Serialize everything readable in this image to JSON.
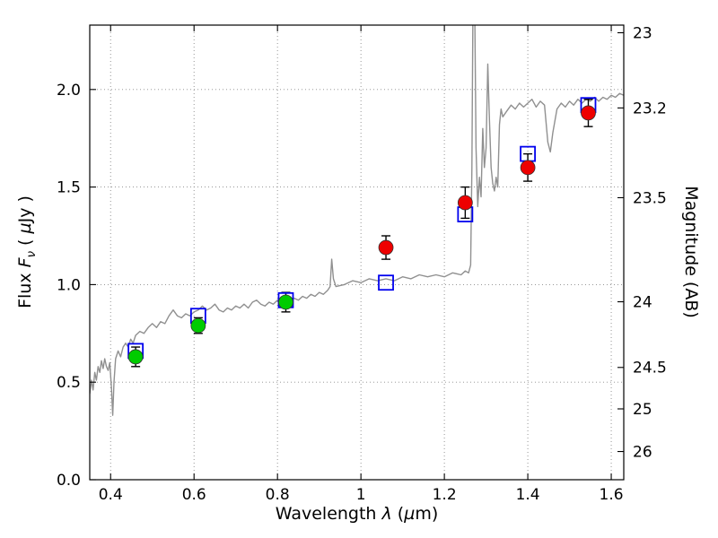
{
  "figure": {
    "background": "#ffffff",
    "frame_color": "#000000",
    "grid_color": "#8a8a8a"
  },
  "labels": {
    "xlabel": {
      "prefix": "Wavelength ",
      "symbol": "λ",
      "mid": " (",
      "symbol2": "µ",
      "end": "m)"
    },
    "ylabel_left": {
      "prefix": "Flux ",
      "symbol": "F",
      "subscript": "ν",
      "mid": " ( ",
      "symbol2": "µ",
      "end": "Jy )"
    },
    "ylabel_right": "Magnitude (AB)"
  },
  "chart_data": {
    "type": "line",
    "title": "",
    "xlabel": "Wavelength λ (µm)",
    "ylabel_left": "Flux Fν ( µJy )",
    "ylabel_right": "Magnitude (AB)",
    "xlim": [
      0.35,
      1.63
    ],
    "ylim": [
      0.0,
      2.33
    ],
    "grid": "dotted",
    "legend": "none",
    "mag_zeropoint": 23.9,
    "x_ticks": [
      0.4,
      0.6,
      0.8,
      1.0,
      1.2,
      1.4,
      1.6
    ],
    "x_tick_labels": [
      "0.4",
      "0.6",
      "0.8",
      "1",
      "1.2",
      "1.4",
      "1.6"
    ],
    "y_ticks_left": [
      0.0,
      0.5,
      1.0,
      1.5,
      2.0
    ],
    "y_tick_labels_left": [
      "0.0",
      "0.5",
      "1.0",
      "1.5",
      "2.0"
    ],
    "y_ticks_right_mags": [
      23,
      23.2,
      23.5,
      24,
      24.5,
      25,
      26
    ],
    "y_tick_labels_right": [
      "23",
      "23.2",
      "23.5",
      "24",
      "24.5",
      "25",
      "26"
    ],
    "series": [
      {
        "name": "model-spectrum",
        "type": "line",
        "color": "#909090",
        "width": 1.4,
        "points": [
          [
            0.35,
            0.44
          ],
          [
            0.354,
            0.51
          ],
          [
            0.358,
            0.46
          ],
          [
            0.362,
            0.55
          ],
          [
            0.366,
            0.51
          ],
          [
            0.37,
            0.58
          ],
          [
            0.374,
            0.55
          ],
          [
            0.378,
            0.61
          ],
          [
            0.382,
            0.57
          ],
          [
            0.386,
            0.62
          ],
          [
            0.39,
            0.58
          ],
          [
            0.394,
            0.56
          ],
          [
            0.398,
            0.6
          ],
          [
            0.402,
            0.47
          ],
          [
            0.405,
            0.33
          ],
          [
            0.408,
            0.5
          ],
          [
            0.412,
            0.62
          ],
          [
            0.418,
            0.66
          ],
          [
            0.424,
            0.63
          ],
          [
            0.43,
            0.68
          ],
          [
            0.436,
            0.7
          ],
          [
            0.442,
            0.68
          ],
          [
            0.448,
            0.72
          ],
          [
            0.454,
            0.7
          ],
          [
            0.46,
            0.74
          ],
          [
            0.47,
            0.76
          ],
          [
            0.48,
            0.75
          ],
          [
            0.49,
            0.78
          ],
          [
            0.5,
            0.8
          ],
          [
            0.51,
            0.78
          ],
          [
            0.52,
            0.81
          ],
          [
            0.53,
            0.8
          ],
          [
            0.54,
            0.84
          ],
          [
            0.55,
            0.87
          ],
          [
            0.56,
            0.84
          ],
          [
            0.57,
            0.83
          ],
          [
            0.58,
            0.85
          ],
          [
            0.59,
            0.84
          ],
          [
            0.6,
            0.86
          ],
          [
            0.61,
            0.87
          ],
          [
            0.62,
            0.89
          ],
          [
            0.63,
            0.87
          ],
          [
            0.64,
            0.88
          ],
          [
            0.65,
            0.9
          ],
          [
            0.66,
            0.87
          ],
          [
            0.67,
            0.86
          ],
          [
            0.68,
            0.88
          ],
          [
            0.69,
            0.87
          ],
          [
            0.7,
            0.89
          ],
          [
            0.71,
            0.88
          ],
          [
            0.72,
            0.9
          ],
          [
            0.73,
            0.88
          ],
          [
            0.74,
            0.91
          ],
          [
            0.75,
            0.92
          ],
          [
            0.76,
            0.9
          ],
          [
            0.77,
            0.89
          ],
          [
            0.78,
            0.91
          ],
          [
            0.79,
            0.9
          ],
          [
            0.8,
            0.92
          ],
          [
            0.81,
            0.91
          ],
          [
            0.82,
            0.93
          ],
          [
            0.83,
            0.92
          ],
          [
            0.84,
            0.93
          ],
          [
            0.85,
            0.92
          ],
          [
            0.86,
            0.94
          ],
          [
            0.87,
            0.93
          ],
          [
            0.88,
            0.95
          ],
          [
            0.89,
            0.94
          ],
          [
            0.9,
            0.96
          ],
          [
            0.91,
            0.95
          ],
          [
            0.92,
            0.97
          ],
          [
            0.926,
            0.99
          ],
          [
            0.93,
            1.13
          ],
          [
            0.934,
            1.03
          ],
          [
            0.94,
            0.99
          ],
          [
            0.96,
            1.0
          ],
          [
            0.98,
            1.02
          ],
          [
            1.0,
            1.01
          ],
          [
            1.02,
            1.03
          ],
          [
            1.04,
            1.02
          ],
          [
            1.06,
            1.03
          ],
          [
            1.08,
            1.02
          ],
          [
            1.1,
            1.04
          ],
          [
            1.12,
            1.03
          ],
          [
            1.14,
            1.05
          ],
          [
            1.16,
            1.04
          ],
          [
            1.18,
            1.05
          ],
          [
            1.2,
            1.04
          ],
          [
            1.22,
            1.06
          ],
          [
            1.24,
            1.05
          ],
          [
            1.25,
            1.07
          ],
          [
            1.258,
            1.06
          ],
          [
            1.263,
            1.1
          ],
          [
            1.266,
            1.6
          ],
          [
            1.269,
            2.6
          ],
          [
            1.272,
            2.6
          ],
          [
            1.276,
            1.7
          ],
          [
            1.28,
            1.4
          ],
          [
            1.284,
            1.55
          ],
          [
            1.288,
            1.45
          ],
          [
            1.292,
            1.8
          ],
          [
            1.296,
            1.6
          ],
          [
            1.3,
            1.7
          ],
          [
            1.304,
            2.13
          ],
          [
            1.308,
            1.85
          ],
          [
            1.312,
            1.6
          ],
          [
            1.316,
            1.52
          ],
          [
            1.32,
            1.48
          ],
          [
            1.324,
            1.55
          ],
          [
            1.328,
            1.5
          ],
          [
            1.332,
            1.82
          ],
          [
            1.336,
            1.9
          ],
          [
            1.34,
            1.86
          ],
          [
            1.35,
            1.89
          ],
          [
            1.36,
            1.92
          ],
          [
            1.37,
            1.9
          ],
          [
            1.38,
            1.93
          ],
          [
            1.39,
            1.91
          ],
          [
            1.4,
            1.93
          ],
          [
            1.41,
            1.95
          ],
          [
            1.42,
            1.91
          ],
          [
            1.43,
            1.94
          ],
          [
            1.44,
            1.92
          ],
          [
            1.448,
            1.73
          ],
          [
            1.454,
            1.68
          ],
          [
            1.46,
            1.78
          ],
          [
            1.47,
            1.9
          ],
          [
            1.48,
            1.93
          ],
          [
            1.49,
            1.91
          ],
          [
            1.5,
            1.94
          ],
          [
            1.51,
            1.92
          ],
          [
            1.52,
            1.95
          ],
          [
            1.53,
            1.93
          ],
          [
            1.54,
            1.95
          ],
          [
            1.55,
            1.94
          ],
          [
            1.56,
            1.96
          ],
          [
            1.57,
            1.94
          ],
          [
            1.58,
            1.96
          ],
          [
            1.59,
            1.95
          ],
          [
            1.6,
            1.97
          ],
          [
            1.61,
            1.96
          ],
          [
            1.62,
            1.98
          ],
          [
            1.63,
            1.97
          ]
        ]
      },
      {
        "name": "observed-optical-photometry",
        "type": "scatter",
        "marker": "circle",
        "color": "#00cc00",
        "edge_color": "#333333",
        "errorbar_color": "#000000",
        "points": [
          {
            "x": 0.46,
            "y": 0.63,
            "yerr": 0.05
          },
          {
            "x": 0.61,
            "y": 0.79,
            "yerr": 0.04
          },
          {
            "x": 0.82,
            "y": 0.91,
            "yerr": 0.05
          }
        ]
      },
      {
        "name": "observed-infrared-photometry",
        "type": "scatter",
        "marker": "circle",
        "color": "#ee0000",
        "edge_color": "#333333",
        "errorbar_color": "#000000",
        "points": [
          {
            "x": 1.06,
            "y": 1.19,
            "yerr": 0.06
          },
          {
            "x": 1.25,
            "y": 1.42,
            "yerr": 0.08
          },
          {
            "x": 1.4,
            "y": 1.6,
            "yerr": 0.07
          },
          {
            "x": 1.545,
            "y": 1.88,
            "yerr": 0.07
          }
        ]
      },
      {
        "name": "model-photometry",
        "type": "scatter",
        "marker": "open-square",
        "color": "#0000ee",
        "points": [
          {
            "x": 0.46,
            "y": 0.66
          },
          {
            "x": 0.61,
            "y": 0.84
          },
          {
            "x": 0.82,
            "y": 0.92
          },
          {
            "x": 1.06,
            "y": 1.01
          },
          {
            "x": 1.25,
            "y": 1.36
          },
          {
            "x": 1.4,
            "y": 1.67
          },
          {
            "x": 1.545,
            "y": 1.92
          }
        ]
      }
    ]
  }
}
